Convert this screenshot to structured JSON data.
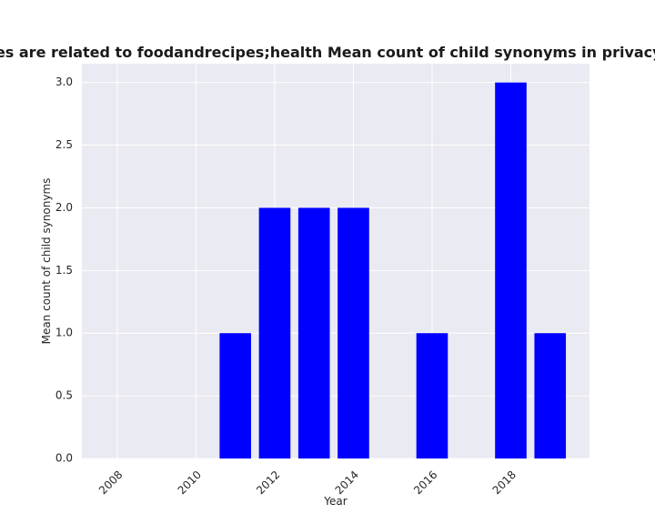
{
  "chart_data": {
    "type": "bar",
    "title": "Categories are related to foodandrecipes;health Mean count of child synonyms in privacy policies",
    "xlabel": "Year",
    "ylabel": "Mean count of child synonyms",
    "x": [
      2011,
      2012,
      2013,
      2014,
      2016,
      2018,
      2019
    ],
    "values": [
      1,
      2,
      2,
      2,
      1,
      3,
      1
    ],
    "xlim": [
      2007.1,
      2020.0
    ],
    "ylim": [
      0,
      3.15
    ],
    "xticks": [
      2008,
      2010,
      2012,
      2014,
      2016,
      2018
    ],
    "yticks": [
      0.0,
      0.5,
      1.0,
      1.5,
      2.0,
      2.5,
      3.0
    ],
    "xtick_labels": [
      "2008",
      "2010",
      "2012",
      "2014",
      "2016",
      "2018"
    ],
    "ytick_labels": [
      "0.0",
      "0.5",
      "1.0",
      "1.5",
      "2.0",
      "2.5",
      "3.0"
    ],
    "grid": true,
    "colors": {
      "bar": "#0000ff",
      "plot_background": "#eaeaf2",
      "grid": "#ffffff"
    }
  }
}
